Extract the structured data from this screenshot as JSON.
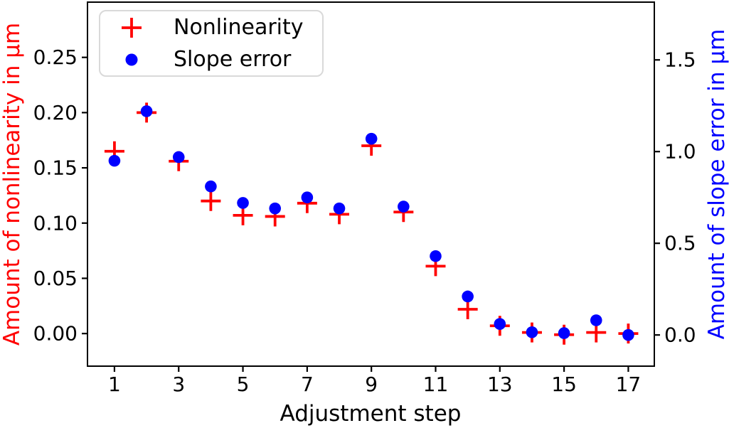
{
  "chart_data": {
    "type": "scatter",
    "x": [
      1,
      2,
      3,
      4,
      5,
      6,
      7,
      8,
      9,
      10,
      11,
      12,
      13,
      14,
      15,
      16,
      17
    ],
    "xlabel": "Adjustment step",
    "x_ticks": [
      1,
      3,
      5,
      7,
      9,
      11,
      13,
      15,
      17
    ],
    "xlim": [
      0.16,
      17.81
    ],
    "grid": false,
    "title": "",
    "axes_left": {
      "ylabel": "Amount of nonlinearity in μm",
      "color": "#ff0000",
      "ytick_labels": [
        "0.00",
        "0.05",
        "0.10",
        "0.15",
        "0.20",
        "0.25"
      ],
      "ylim": [
        -0.0295,
        0.3
      ]
    },
    "axes_right": {
      "ylabel": "Amount of slope error in μm",
      "color": "#0000ff",
      "ytick_labels": [
        "0.0",
        "0.5",
        "1.0",
        "1.5"
      ],
      "ylim": [
        -0.17,
        1.815
      ]
    },
    "series": [
      {
        "name": "Nonlinearity",
        "axis": "left",
        "marker": "plus",
        "color": "#ff0000",
        "values": [
          0.165,
          0.2,
          0.156,
          0.12,
          0.107,
          0.106,
          0.118,
          0.108,
          0.17,
          0.11,
          0.061,
          0.022,
          0.007,
          0.001,
          -0.001,
          0.001,
          0.0
        ]
      },
      {
        "name": "Slope error",
        "axis": "right",
        "marker": "circle",
        "color": "#0000ff",
        "values": [
          0.95,
          1.22,
          0.97,
          0.81,
          0.72,
          0.69,
          0.75,
          0.69,
          1.07,
          0.7,
          0.43,
          0.21,
          0.06,
          0.015,
          0.01,
          0.08,
          0.0
        ]
      }
    ],
    "legend": {
      "position": "upper left"
    }
  },
  "style": {
    "tick_color": "#000000",
    "spine_color": "#000000",
    "background": "#ffffff"
  }
}
